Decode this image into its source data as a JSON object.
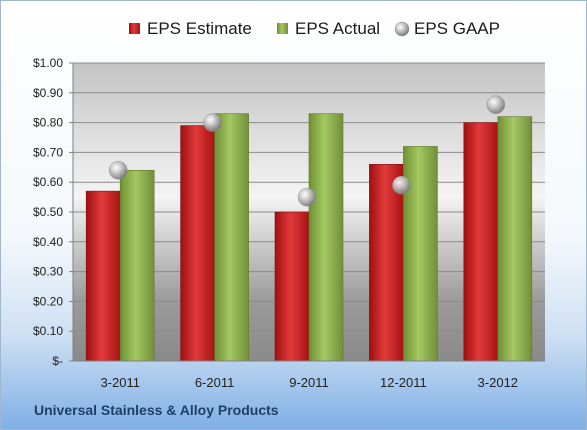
{
  "company_name": "Universal Stainless & Alloy Products",
  "colors": {
    "estimate": "#cc1f1f",
    "actual": "#8cb24a",
    "gaap": "#b3b3b3"
  },
  "chart_data": {
    "type": "bar",
    "categories": [
      "3-2011",
      "6-2011",
      "9-2011",
      "12-2011",
      "3-2012"
    ],
    "series": [
      {
        "name": "EPS Estimate",
        "kind": "bar",
        "values": [
          0.57,
          0.79,
          0.5,
          0.66,
          0.8
        ]
      },
      {
        "name": "EPS Actual",
        "kind": "bar",
        "values": [
          0.64,
          0.83,
          0.83,
          0.72,
          0.82
        ]
      },
      {
        "name": "EPS GAAP",
        "kind": "marker",
        "values": [
          0.64,
          0.8,
          0.55,
          0.59,
          0.86
        ]
      }
    ],
    "ylim": [
      0,
      1.0
    ],
    "yticks": [
      0,
      0.1,
      0.2,
      0.3,
      0.4,
      0.5,
      0.6,
      0.7,
      0.8,
      0.9,
      1.0
    ],
    "ytick_labels": [
      "$-",
      "$0.10",
      "$0.20",
      "$0.30",
      "$0.40",
      "$0.50",
      "$0.60",
      "$0.70",
      "$0.80",
      "$0.90",
      "$1.00"
    ],
    "grid": true,
    "legend_position": "top"
  }
}
